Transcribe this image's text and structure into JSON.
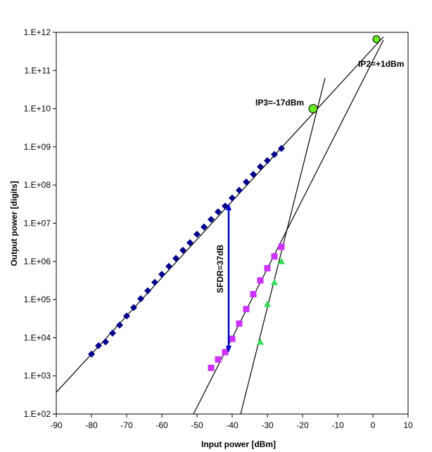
{
  "chart_data": {
    "type": "scatter",
    "title": "",
    "xlabel": "Input power [dBm]",
    "ylabel": "Output power [digits]",
    "xlim": [
      -90,
      10
    ],
    "ylim_log10": [
      2,
      12
    ],
    "yscale": "log",
    "x_ticks": [
      -90,
      -80,
      -70,
      -60,
      -50,
      -40,
      -30,
      -20,
      -10,
      0,
      10
    ],
    "y_ticks": [
      {
        "exp": 2,
        "label": "1.E+02"
      },
      {
        "exp": 3,
        "label": "1.E+03"
      },
      {
        "exp": 4,
        "label": "1.E+04"
      },
      {
        "exp": 5,
        "label": "1.E+05"
      },
      {
        "exp": 6,
        "label": "1.E+06"
      },
      {
        "exp": 7,
        "label": "1.E+07"
      },
      {
        "exp": 8,
        "label": "1.E+08"
      },
      {
        "exp": 9,
        "label": "1.E+09"
      },
      {
        "exp": 10,
        "label": "1.E+10"
      },
      {
        "exp": 11,
        "label": "1.E+11"
      },
      {
        "exp": 12,
        "label": "1.E+12"
      }
    ],
    "grid": false,
    "legend": "none",
    "series": [
      {
        "marker": "diamond",
        "color": "#00008B",
        "x": [
          -80,
          -78,
          -76,
          -74,
          -72,
          -70,
          -68,
          -66,
          -64,
          -62,
          -60,
          -58,
          -56,
          -54,
          -52,
          -50,
          -48,
          -46,
          -44,
          -42,
          -40,
          -38,
          -36,
          -34,
          -32,
          -30,
          -28,
          -26
        ],
        "log10_y": [
          3.57,
          3.79,
          3.89,
          4.12,
          4.33,
          4.57,
          4.79,
          5.02,
          5.23,
          5.45,
          5.66,
          5.87,
          6.08,
          6.29,
          6.49,
          6.71,
          6.9,
          7.1,
          7.3,
          7.45,
          7.66,
          7.86,
          8.08,
          8.28,
          8.48,
          8.64,
          8.8,
          8.96
        ]
      },
      {
        "marker": "square",
        "color": "#CC33FF",
        "x": [
          -46,
          -44,
          -42,
          -40,
          -38,
          -36,
          -34,
          -32,
          -30,
          -28,
          -26
        ],
        "log10_y": [
          3.21,
          3.43,
          3.62,
          3.97,
          4.37,
          4.75,
          5.14,
          5.5,
          5.82,
          6.13,
          6.38
        ]
      },
      {
        "marker": "triangle",
        "color": "#33DD55",
        "x": [
          -32,
          -30,
          -28,
          -26
        ],
        "log10_y": [
          3.89,
          4.88,
          5.45,
          6.0
        ]
      }
    ],
    "fit_lines": [
      {
        "name": "fundamental",
        "slope_db_per_db": 1,
        "points": [
          [
            -90,
            2.57
          ],
          [
            3,
            11.88
          ]
        ]
      },
      {
        "name": "second-order",
        "slope_db_per_db": 2,
        "points": [
          [
            -51,
            2.0
          ],
          [
            3,
            11.8
          ]
        ]
      },
      {
        "name": "third-order",
        "slope_db_per_db": 3,
        "points": [
          [
            -37.6,
            2.0
          ],
          [
            -13.6,
            10.8
          ]
        ]
      }
    ],
    "intercept_points": [
      {
        "x": 1,
        "log10_y": 11.82,
        "color": "#66EE22"
      },
      {
        "x": -17,
        "log10_y": 10.0,
        "color": "#66EE22"
      }
    ],
    "annotations": {
      "ip2": "IP2=+1dBm",
      "ip3": "IP3=-17dBm",
      "sfdr": "SFDR=37dB"
    },
    "sfdr_arrow": {
      "x": -41,
      "log10_y_from": 3.68,
      "log10_y_to": 7.45,
      "color": "#0000CC"
    }
  }
}
